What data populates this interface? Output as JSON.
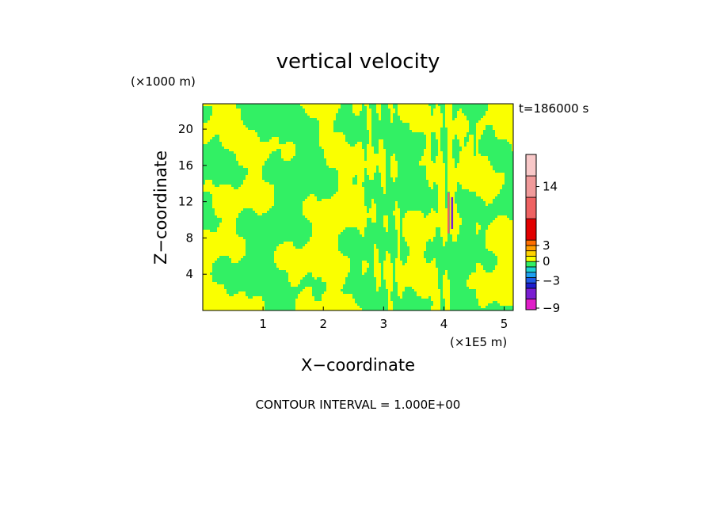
{
  "chart_data": {
    "type": "heatmap",
    "title": "vertical velocity",
    "xlabel": "X−coordinate",
    "ylabel": "Z−coordinate",
    "x_unit": "(×1E5 m)",
    "y_unit": "(×1000 m)",
    "time_label": "t=186000 s",
    "footer": "CONTOUR INTERVAL = 1.000E+00",
    "xlim": [
      0,
      5.15
    ],
    "ylim": [
      0,
      22.8
    ],
    "x_ticks": [
      "1",
      "2",
      "3",
      "4",
      "5"
    ],
    "y_ticks": [
      "4",
      "8",
      "12",
      "16",
      "20"
    ],
    "colorbar_labels": [
      "14",
      "3",
      "0",
      "−3",
      "−9"
    ],
    "colorbar": [
      {
        "from": -9,
        "to": -7,
        "color": "#e01ec8"
      },
      {
        "from": -7,
        "to": -5,
        "color": "#7a1ed2"
      },
      {
        "from": -5,
        "to": -4,
        "color": "#1e1ecf"
      },
      {
        "from": -4,
        "to": -3,
        "color": "#1e5ae6"
      },
      {
        "from": -3,
        "to": -2,
        "color": "#1ea0f0"
      },
      {
        "from": -2,
        "to": -1,
        "color": "#1ed2d2"
      },
      {
        "from": -1,
        "to": 0,
        "color": "#32f064"
      },
      {
        "from": 0,
        "to": 1,
        "color": "#faff00"
      },
      {
        "from": 1,
        "to": 2,
        "color": "#ffd200"
      },
      {
        "from": 2,
        "to": 3,
        "color": "#ffa000"
      },
      {
        "from": 3,
        "to": 4,
        "color": "#ff6e00"
      },
      {
        "from": 4,
        "to": 8,
        "color": "#e10000"
      },
      {
        "from": 8,
        "to": 12,
        "color": "#ee6262"
      },
      {
        "from": 12,
        "to": 16,
        "color": "#f09a9a"
      },
      {
        "from": 16,
        "to": 20,
        "color": "#f8c8c8"
      }
    ],
    "field_colors": {
      "negative": "#32f064",
      "positive": "#faff00"
    },
    "features": [
      {
        "name": "updraft core",
        "x": 4.08,
        "y_range": [
          8.5,
          13
        ],
        "max": 12
      },
      {
        "name": "downdraft core",
        "x": 4.1,
        "y_range": [
          9,
          12.5
        ],
        "min": -5
      }
    ]
  }
}
